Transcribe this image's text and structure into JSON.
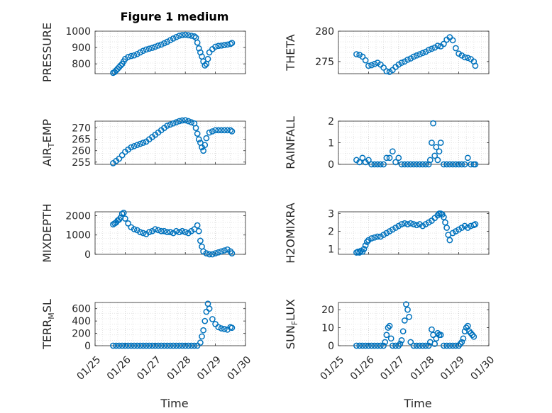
{
  "figure": {
    "title": "Figure 1 medium",
    "marker_color": "#0072BD",
    "xlabel": "Time",
    "xtick_labels": [
      "01/25",
      "01/26",
      "01/27",
      "01/28",
      "01/29",
      "01/30"
    ]
  },
  "chart_data": [
    {
      "type": "scatter",
      "ylabel": "PRESSURE",
      "ylim": [
        740,
        1000
      ],
      "yticks": [
        800,
        900,
        1000
      ],
      "x": [
        25.6,
        25.65,
        25.7,
        25.75,
        25.8,
        25.85,
        25.9,
        25.95,
        26.0,
        26.1,
        26.2,
        26.3,
        26.4,
        26.5,
        26.6,
        26.7,
        26.8,
        26.9,
        27.0,
        27.1,
        27.2,
        27.3,
        27.4,
        27.5,
        27.6,
        27.7,
        27.8,
        27.9,
        28.0,
        28.1,
        28.2,
        28.3,
        28.35,
        28.4,
        28.45,
        28.5,
        28.55,
        28.6,
        28.65,
        28.7,
        28.75,
        28.8,
        28.9,
        29.0,
        29.1,
        29.2,
        29.3,
        29.4,
        29.5,
        29.55
      ],
      "y": [
        745,
        750,
        760,
        770,
        780,
        790,
        800,
        815,
        830,
        842,
        848,
        852,
        860,
        870,
        880,
        888,
        893,
        898,
        905,
        912,
        918,
        926,
        935,
        945,
        955,
        964,
        972,
        976,
        978,
        975,
        972,
        968,
        960,
        930,
        895,
        870,
        845,
        815,
        790,
        800,
        830,
        870,
        890,
        905,
        910,
        912,
        915,
        918,
        922,
        928
      ],
      "grid": true
    },
    {
      "type": "scatter",
      "ylabel": "THETA",
      "ylim": [
        273,
        280
      ],
      "yticks": [
        275,
        280
      ],
      "x": [
        25.6,
        25.7,
        25.8,
        25.9,
        26.0,
        26.1,
        26.2,
        26.3,
        26.4,
        26.5,
        26.6,
        26.7,
        26.8,
        26.9,
        27.0,
        27.1,
        27.2,
        27.3,
        27.4,
        27.5,
        27.6,
        27.7,
        27.8,
        27.9,
        28.0,
        28.1,
        28.2,
        28.3,
        28.4,
        28.5,
        28.6,
        28.7,
        28.8,
        28.9,
        29.0,
        29.1,
        29.2,
        29.3,
        29.4,
        29.5,
        29.55
      ],
      "y": [
        276.2,
        276.1,
        275.8,
        275.2,
        274.3,
        274.4,
        274.6,
        274.8,
        274.5,
        274.0,
        273.4,
        273.3,
        273.6,
        274.1,
        274.5,
        274.8,
        275.0,
        275.3,
        275.5,
        275.8,
        276.0,
        276.2,
        276.4,
        276.6,
        276.9,
        277.1,
        277.3,
        277.6,
        277.5,
        277.9,
        278.6,
        279.0,
        278.5,
        277.2,
        276.3,
        276.0,
        275.7,
        275.6,
        275.4,
        275.0,
        274.3
      ],
      "grid": true
    },
    {
      "type": "scatter",
      "ylabel": "AIR_TEMP",
      "ylim": [
        254,
        273
      ],
      "yticks": [
        255,
        260,
        265,
        270
      ],
      "x": [
        25.6,
        25.7,
        25.8,
        25.9,
        26.0,
        26.1,
        26.2,
        26.3,
        26.4,
        26.5,
        26.6,
        26.7,
        26.8,
        26.9,
        27.0,
        27.1,
        27.2,
        27.3,
        27.4,
        27.5,
        27.6,
        27.7,
        27.8,
        27.9,
        28.0,
        28.1,
        28.2,
        28.3,
        28.35,
        28.4,
        28.45,
        28.5,
        28.55,
        28.6,
        28.65,
        28.7,
        28.8,
        28.9,
        29.0,
        29.1,
        29.2,
        29.3,
        29.4,
        29.5,
        29.55
      ],
      "y": [
        254.5,
        255.5,
        256.5,
        258.0,
        259.5,
        260.5,
        261.5,
        262.0,
        262.5,
        263.0,
        263.5,
        264.0,
        265.0,
        266.0,
        267.0,
        268.0,
        269.0,
        270.0,
        271.0,
        271.5,
        272.0,
        272.5,
        273.0,
        273.3,
        273.4,
        273.0,
        272.5,
        272.0,
        270.0,
        267.5,
        265.0,
        263.5,
        261.5,
        260.0,
        262.5,
        265.5,
        268.0,
        268.5,
        269.0,
        269.0,
        269.0,
        269.0,
        269.0,
        269.0,
        268.5
      ],
      "grid": true
    },
    {
      "type": "scatter",
      "ylabel": "RAINFALL",
      "ylim": [
        0,
        2
      ],
      "yticks": [
        0,
        1,
        2
      ],
      "x": [
        25.6,
        25.7,
        25.8,
        25.9,
        26.0,
        26.1,
        26.2,
        26.3,
        26.4,
        26.5,
        26.6,
        26.7,
        26.8,
        26.9,
        27.0,
        27.1,
        27.2,
        27.3,
        27.4,
        27.5,
        27.6,
        27.7,
        27.8,
        27.9,
        28.0,
        28.05,
        28.1,
        28.15,
        28.2,
        28.25,
        28.3,
        28.35,
        28.4,
        28.5,
        28.6,
        28.7,
        28.8,
        28.9,
        29.0,
        29.1,
        29.2,
        29.3,
        29.4,
        29.5,
        29.55
      ],
      "y": [
        0.2,
        0.1,
        0.3,
        0.1,
        0.2,
        0.0,
        0.0,
        0.0,
        0.0,
        0.0,
        0.3,
        0.3,
        0.6,
        0.1,
        0.3,
        0.0,
        0.0,
        0.0,
        0.0,
        0.0,
        0.0,
        0.0,
        0.0,
        0.0,
        0.0,
        0.2,
        1.0,
        1.9,
        0.4,
        0.8,
        0.2,
        0.6,
        1.0,
        0.0,
        0.0,
        0.0,
        0.0,
        0.0,
        0.0,
        0.0,
        0.0,
        0.3,
        0.0,
        0.0,
        0.0
      ],
      "grid": true
    },
    {
      "type": "scatter",
      "ylabel": "MIXDEPTH",
      "ylim": [
        0,
        2200
      ],
      "yticks": [
        0,
        1000,
        2000
      ],
      "x": [
        25.6,
        25.65,
        25.7,
        25.75,
        25.8,
        25.85,
        25.9,
        25.95,
        26.0,
        26.1,
        26.2,
        26.3,
        26.4,
        26.5,
        26.6,
        26.7,
        26.8,
        26.9,
        27.0,
        27.1,
        27.2,
        27.3,
        27.4,
        27.5,
        27.6,
        27.7,
        27.8,
        27.9,
        28.0,
        28.1,
        28.2,
        28.3,
        28.4,
        28.45,
        28.5,
        28.55,
        28.6,
        28.7,
        28.8,
        28.9,
        29.0,
        29.1,
        29.2,
        29.3,
        29.4,
        29.5,
        29.55
      ],
      "y": [
        1550,
        1600,
        1650,
        1750,
        1800,
        1900,
        2100,
        2150,
        1850,
        1600,
        1400,
        1300,
        1250,
        1150,
        1100,
        1050,
        1150,
        1200,
        1300,
        1250,
        1200,
        1200,
        1150,
        1150,
        1100,
        1200,
        1150,
        1200,
        1150,
        1100,
        1200,
        1300,
        1500,
        1200,
        700,
        400,
        150,
        50,
        0,
        0,
        50,
        100,
        150,
        200,
        250,
        150,
        50
      ],
      "grid": true
    },
    {
      "type": "scatter",
      "ylabel": "H2OMIXRA",
      "ylim": [
        0.7,
        3.1
      ],
      "yticks": [
        1,
        2,
        3
      ],
      "x": [
        25.6,
        25.65,
        25.7,
        25.75,
        25.8,
        25.85,
        25.9,
        25.95,
        26.0,
        26.1,
        26.2,
        26.3,
        26.4,
        26.5,
        26.6,
        26.7,
        26.8,
        26.9,
        27.0,
        27.1,
        27.2,
        27.3,
        27.4,
        27.5,
        27.6,
        27.7,
        27.8,
        27.9,
        28.0,
        28.1,
        28.2,
        28.3,
        28.35,
        28.4,
        28.45,
        28.5,
        28.55,
        28.6,
        28.65,
        28.7,
        28.8,
        28.9,
        29.0,
        29.1,
        29.2,
        29.3,
        29.4,
        29.5,
        29.55
      ],
      "y": [
        0.8,
        0.85,
        0.8,
        0.9,
        0.85,
        1.0,
        1.2,
        1.4,
        1.5,
        1.6,
        1.65,
        1.7,
        1.7,
        1.8,
        1.9,
        2.0,
        2.1,
        2.2,
        2.3,
        2.4,
        2.45,
        2.4,
        2.45,
        2.4,
        2.35,
        2.4,
        2.3,
        2.4,
        2.5,
        2.6,
        2.75,
        2.9,
        3.0,
        3.0,
        2.95,
        2.8,
        2.5,
        2.2,
        1.8,
        1.5,
        1.9,
        2.0,
        2.1,
        2.2,
        2.3,
        2.2,
        2.3,
        2.35,
        2.4
      ],
      "grid": true
    },
    {
      "type": "scatter",
      "ylabel": "TERR_MSL",
      "ylim": [
        0,
        700
      ],
      "yticks": [
        0,
        200,
        400,
        600
      ],
      "x": [
        25.6,
        25.7,
        25.8,
        25.9,
        26.0,
        26.1,
        26.2,
        26.3,
        26.4,
        26.5,
        26.6,
        26.7,
        26.8,
        26.9,
        27.0,
        27.1,
        27.2,
        27.3,
        27.4,
        27.5,
        27.6,
        27.7,
        27.8,
        27.9,
        28.0,
        28.1,
        28.2,
        28.3,
        28.4,
        28.5,
        28.55,
        28.6,
        28.65,
        28.7,
        28.75,
        28.8,
        28.9,
        29.0,
        29.1,
        29.2,
        29.3,
        29.4,
        29.5,
        29.55
      ],
      "y": [
        0,
        0,
        0,
        0,
        0,
        0,
        0,
        0,
        0,
        0,
        0,
        0,
        0,
        0,
        0,
        0,
        0,
        0,
        0,
        0,
        0,
        0,
        0,
        0,
        0,
        0,
        0,
        0,
        0,
        50,
        150,
        250,
        400,
        550,
        680,
        600,
        430,
        350,
        300,
        280,
        270,
        260,
        300,
        290
      ],
      "grid": true
    },
    {
      "type": "scatter",
      "ylabel": "SUN_FLUX",
      "ylim": [
        0,
        24
      ],
      "yticks": [
        0,
        10,
        20
      ],
      "x": [
        25.6,
        25.7,
        25.8,
        25.9,
        26.0,
        26.1,
        26.2,
        26.3,
        26.4,
        26.5,
        26.55,
        26.6,
        26.65,
        26.7,
        26.75,
        26.8,
        26.9,
        27.0,
        27.05,
        27.1,
        27.15,
        27.2,
        27.25,
        27.3,
        27.35,
        27.4,
        27.5,
        27.6,
        27.7,
        27.8,
        27.9,
        28.0,
        28.05,
        28.1,
        28.15,
        28.2,
        28.25,
        28.3,
        28.35,
        28.4,
        28.5,
        28.6,
        28.7,
        28.8,
        28.9,
        29.0,
        29.05,
        29.1,
        29.15,
        29.2,
        29.25,
        29.3,
        29.35,
        29.4,
        29.45,
        29.5
      ],
      "y": [
        0,
        0,
        0,
        0,
        0,
        0,
        0,
        0,
        0,
        0,
        2,
        6,
        10,
        11,
        4,
        0,
        0,
        0,
        1,
        3,
        8,
        14,
        23,
        20,
        16,
        2,
        0,
        0,
        0,
        0,
        0,
        0,
        2,
        9,
        6,
        1,
        4,
        7,
        6,
        6,
        0,
        0,
        0,
        0,
        0,
        0,
        1,
        2,
        4,
        8,
        10,
        11,
        8,
        7,
        6,
        5
      ],
      "grid": true
    }
  ]
}
